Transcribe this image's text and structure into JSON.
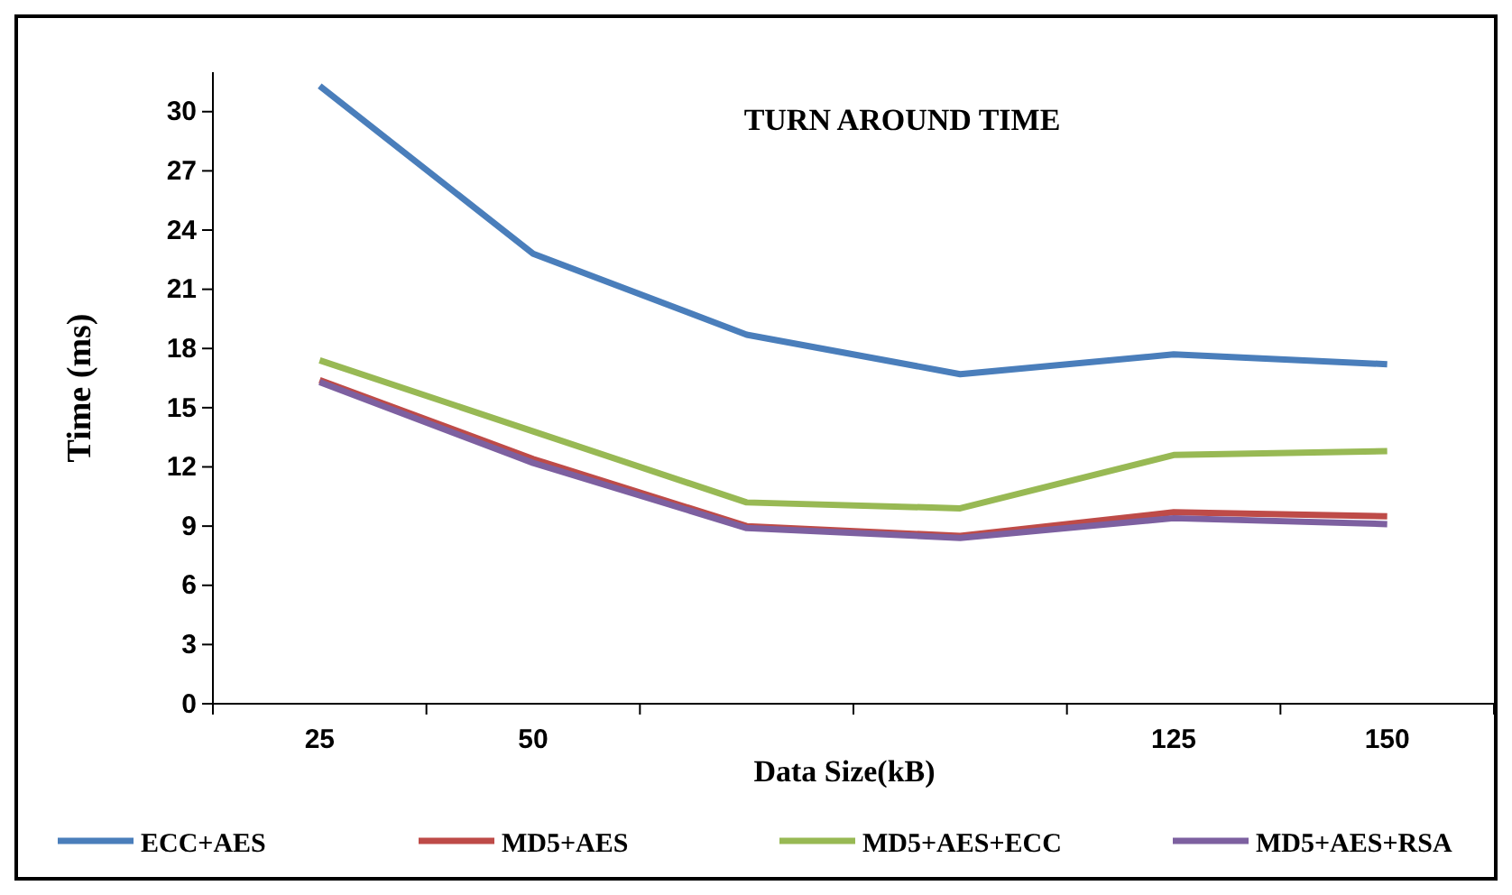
{
  "chart_data": {
    "type": "line",
    "title": "TURN AROUND TIME",
    "xlabel": "Data Size(kB)",
    "ylabel": "Time (ms)",
    "categories": [
      "25",
      "50",
      null,
      null,
      "125",
      "150"
    ],
    "ylim": [
      0,
      32
    ],
    "yticks": [
      0,
      3,
      6,
      9,
      12,
      15,
      18,
      21,
      24,
      27,
      30
    ],
    "series": [
      {
        "name": "ECC+AES",
        "color": "#4a7ebb",
        "values": [
          31.3,
          22.8,
          18.7,
          16.7,
          17.7,
          17.2
        ]
      },
      {
        "name": "MD5+AES",
        "color": "#be4b48",
        "values": [
          16.4,
          12.4,
          9.0,
          8.5,
          9.7,
          9.5
        ]
      },
      {
        "name": "MD5+AES+ECC",
        "color": "#98b954",
        "values": [
          17.4,
          13.8,
          10.2,
          9.9,
          12.6,
          12.8
        ]
      },
      {
        "name": "MD5+AES+RSA",
        "color": "#7d60a0",
        "values": [
          16.3,
          12.2,
          8.9,
          8.4,
          9.4,
          9.1
        ]
      }
    ],
    "legend": "bottom",
    "grid": false,
    "marker": "none",
    "line_style": "solid"
  }
}
